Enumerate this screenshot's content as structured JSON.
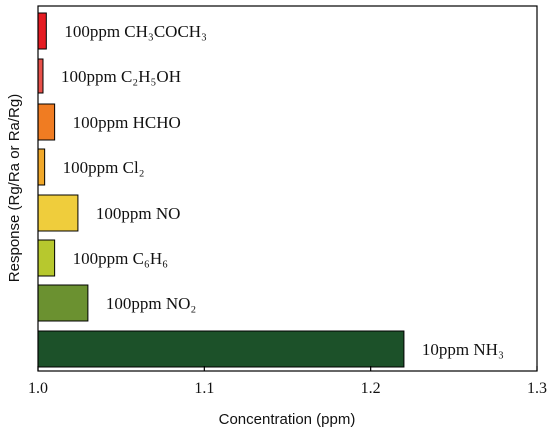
{
  "chart_data": {
    "type": "bar",
    "orientation": "horizontal",
    "xlabel": "Concentration (ppm)",
    "ylabel": "Response (Rg/Ra or Ra/Rg)",
    "xlim": [
      1.0,
      1.3
    ],
    "x_ticks": [
      "1.0",
      "1.1",
      "1.2",
      "1.3"
    ],
    "grid": false,
    "bars": [
      {
        "label": "100ppm CH₃COCH₃",
        "value": 1.005,
        "color": "#e51c23"
      },
      {
        "label": "100ppm C₂H₅OH",
        "value": 1.003,
        "color": "#e8504a"
      },
      {
        "label": "100ppm HCHO",
        "value": 1.01,
        "color": "#f07c22"
      },
      {
        "label": "100ppm Cl₂",
        "value": 1.004,
        "color": "#f0a82a"
      },
      {
        "label": "100ppm NO",
        "value": 1.024,
        "color": "#efcd3c"
      },
      {
        "label": "100ppm C₆H₆",
        "value": 1.01,
        "color": "#b7c82e"
      },
      {
        "label": "100ppm NO₂",
        "value": 1.03,
        "color": "#6b9130"
      },
      {
        "label": "10ppm NH₃",
        "value": 1.22,
        "color": "#1c5129"
      }
    ]
  }
}
